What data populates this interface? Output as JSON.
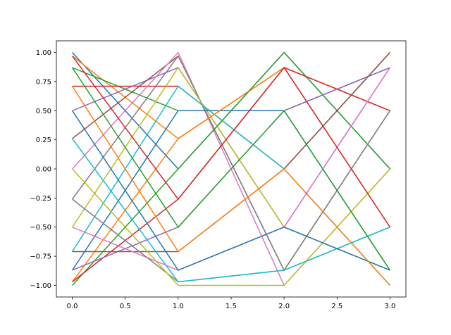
{
  "chart_data": {
    "type": "line",
    "x": [
      0,
      1,
      2,
      3
    ],
    "xlim": [
      -0.15,
      3.15
    ],
    "ylim": [
      -1.1,
      1.1
    ],
    "xticks": [
      {
        "value": 0,
        "label": "0.0"
      },
      {
        "value": 0.5,
        "label": "0.5"
      },
      {
        "value": 1,
        "label": "1.0"
      },
      {
        "value": 1.5,
        "label": "1.5"
      },
      {
        "value": 2,
        "label": "2.0"
      },
      {
        "value": 2.5,
        "label": "2.5"
      },
      {
        "value": 3,
        "label": "3.0"
      }
    ],
    "yticks": [
      {
        "value": -1,
        "label": "−1.00"
      },
      {
        "value": -0.75,
        "label": "−0.75"
      },
      {
        "value": -0.5,
        "label": "−0.50"
      },
      {
        "value": -0.25,
        "label": "−0.25"
      },
      {
        "value": 0,
        "label": "0.00"
      },
      {
        "value": 0.25,
        "label": "0.25"
      },
      {
        "value": 0.5,
        "label": "0.50"
      },
      {
        "value": 0.75,
        "label": "0.75"
      },
      {
        "value": 1,
        "label": "1.00"
      }
    ],
    "series": [
      {
        "color": "#1f77b4",
        "values": [
          1,
          0,
          1,
          0
        ]
      },
      {
        "color": "#ff7f0e",
        "values": [
          0.97,
          0.26,
          0.87,
          0.5
        ]
      },
      {
        "color": "#2ca02c",
        "values": [
          0.87,
          0.5,
          0.5,
          0.87
        ]
      },
      {
        "color": "#d62728",
        "values": [
          0.71,
          0.71,
          0,
          1
        ]
      },
      {
        "color": "#9467bd",
        "values": [
          0.5,
          0.87,
          -0.5,
          0.87
        ]
      },
      {
        "color": "#8c564b",
        "values": [
          0.26,
          0.97,
          -0.87,
          0.5
        ]
      },
      {
        "color": "#e377c2",
        "values": [
          0,
          1,
          -1,
          0
        ]
      },
      {
        "color": "#7f7f7f",
        "values": [
          -0.26,
          0.97,
          -0.87,
          -0.5
        ]
      },
      {
        "color": "#bcbd22",
        "values": [
          -0.5,
          0.87,
          -0.5,
          -0.87
        ]
      },
      {
        "color": "#17becf",
        "values": [
          -0.71,
          0.71,
          0,
          -1
        ]
      },
      {
        "color": "#1f77b4",
        "values": [
          -0.87,
          0.5,
          0.5,
          -0.87
        ]
      },
      {
        "color": "#ff7f0e",
        "values": [
          -0.97,
          0.26,
          0.87,
          -0.5
        ]
      },
      {
        "color": "#2ca02c",
        "values": [
          -1,
          0,
          1,
          0
        ]
      },
      {
        "color": "#d62728",
        "values": [
          -0.97,
          -0.26,
          0.87,
          0.5
        ]
      },
      {
        "color": "#9467bd",
        "values": [
          -0.87,
          -0.5,
          0.5,
          0.87
        ]
      },
      {
        "color": "#8c564b",
        "values": [
          -0.71,
          -0.71,
          0,
          1
        ]
      },
      {
        "color": "#e377c2",
        "values": [
          -0.5,
          -0.87,
          -0.5,
          0.87
        ]
      },
      {
        "color": "#7f7f7f",
        "values": [
          -0.26,
          -0.97,
          -0.87,
          0.5
        ]
      },
      {
        "color": "#bcbd22",
        "values": [
          0,
          -1,
          -1,
          0
        ]
      },
      {
        "color": "#17becf",
        "values": [
          0.26,
          -0.97,
          -0.87,
          -0.5
        ]
      },
      {
        "color": "#1f77b4",
        "values": [
          0.5,
          -0.87,
          -0.5,
          -0.87
        ]
      },
      {
        "color": "#ff7f0e",
        "values": [
          0.71,
          -0.71,
          0,
          -1
        ]
      },
      {
        "color": "#2ca02c",
        "values": [
          0.87,
          -0.5,
          0.5,
          -0.87
        ]
      },
      {
        "color": "#d62728",
        "values": [
          0.97,
          -0.26,
          0.87,
          -0.5
        ]
      }
    ]
  }
}
